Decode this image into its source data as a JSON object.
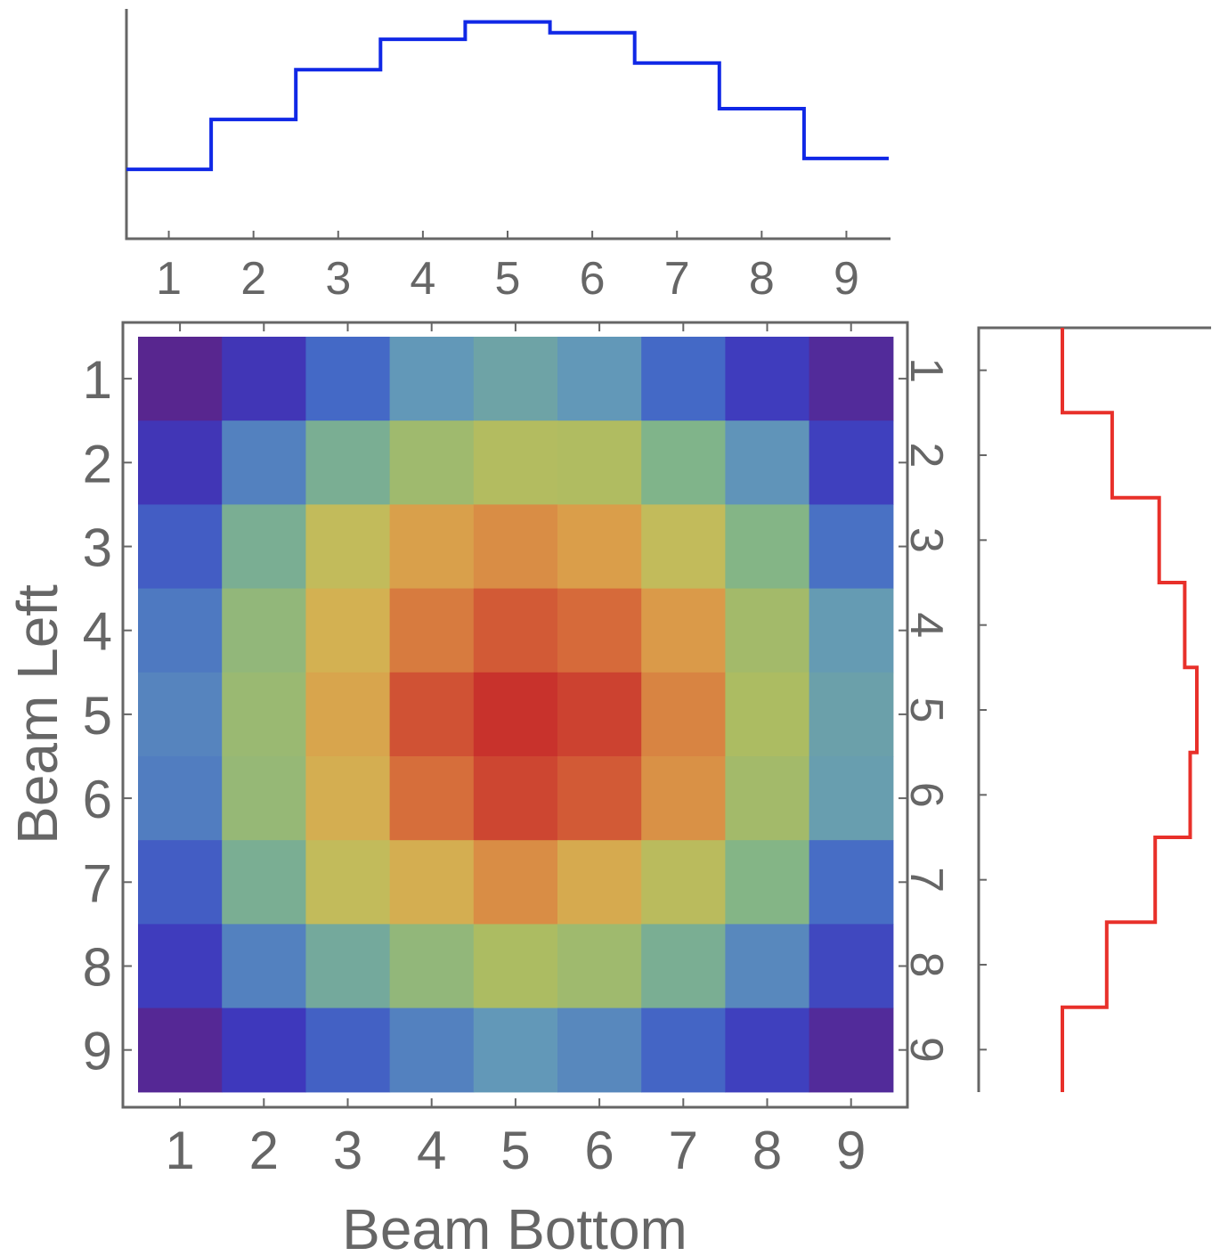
{
  "chart_data": [
    {
      "type": "heatmap",
      "name": "beam-intensity-map",
      "xlabel": "Beam Bottom",
      "ylabel": "Beam Left",
      "x_categories": [
        "1",
        "2",
        "3",
        "4",
        "5",
        "6",
        "7",
        "8",
        "9"
      ],
      "y_categories": [
        "1",
        "2",
        "3",
        "4",
        "5",
        "6",
        "7",
        "8",
        "9"
      ],
      "grid": false,
      "colormap": "rainbow (purple-blue-green-yellow-orange-red)",
      "value_range": [
        0,
        1
      ],
      "values": [
        [
          0.0,
          0.07,
          0.2,
          0.32,
          0.36,
          0.32,
          0.2,
          0.09,
          0.02
        ],
        [
          0.07,
          0.26,
          0.4,
          0.49,
          0.54,
          0.53,
          0.42,
          0.31,
          0.1
        ],
        [
          0.17,
          0.4,
          0.58,
          0.73,
          0.78,
          0.74,
          0.58,
          0.43,
          0.22
        ],
        [
          0.24,
          0.46,
          0.66,
          0.82,
          0.9,
          0.86,
          0.75,
          0.5,
          0.33
        ],
        [
          0.27,
          0.48,
          0.71,
          0.92,
          1.0,
          0.96,
          0.8,
          0.52,
          0.35
        ],
        [
          0.25,
          0.47,
          0.67,
          0.85,
          0.95,
          0.9,
          0.77,
          0.5,
          0.34
        ],
        [
          0.17,
          0.4,
          0.58,
          0.67,
          0.78,
          0.69,
          0.56,
          0.43,
          0.21
        ],
        [
          0.09,
          0.26,
          0.38,
          0.46,
          0.52,
          0.49,
          0.4,
          0.28,
          0.12
        ],
        [
          0.01,
          0.08,
          0.18,
          0.26,
          0.32,
          0.28,
          0.19,
          0.1,
          0.02
        ]
      ]
    },
    {
      "type": "line",
      "step": true,
      "name": "top-marginal",
      "orientation": "horizontal",
      "color": "#1028e6",
      "x": [
        1,
        2,
        3,
        4,
        5,
        6,
        7,
        8,
        9
      ],
      "values": [
        0.32,
        0.55,
        0.78,
        0.92,
        1.0,
        0.95,
        0.81,
        0.6,
        0.37
      ],
      "ylim": [
        0,
        1.06
      ],
      "tick_labels": [
        "1",
        "2",
        "3",
        "4",
        "5",
        "6",
        "7",
        "8",
        "9"
      ]
    },
    {
      "type": "line",
      "step": true,
      "name": "right-marginal",
      "orientation": "vertical",
      "color": "#e8302a",
      "y": [
        1,
        2,
        3,
        4,
        5,
        6,
        7,
        8,
        9
      ],
      "values": [
        0.0,
        0.37,
        0.72,
        0.91,
        1.0,
        0.95,
        0.69,
        0.33,
        0.0
      ],
      "tick_labels": [
        "1",
        "2",
        "3",
        "4",
        "5",
        "6",
        "7",
        "8",
        "9"
      ]
    }
  ]
}
